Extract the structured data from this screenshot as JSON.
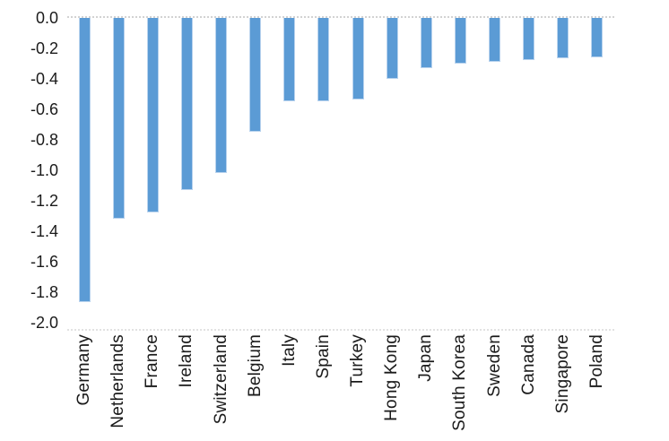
{
  "chart_data": {
    "type": "bar",
    "orientation": "vertical",
    "title": "",
    "xlabel": "",
    "ylabel": "",
    "categories": [
      "Germany",
      "Netherlands",
      "France",
      "Ireland",
      "Switzerland",
      "Belgium",
      "Italy",
      "Spain",
      "Turkey",
      "Hong Kong",
      "Japan",
      "South Korea",
      "Sweden",
      "Canada",
      "Singapore",
      "Poland"
    ],
    "values": [
      -1.87,
      -1.32,
      -1.28,
      -1.13,
      -1.02,
      -0.75,
      -0.55,
      -0.55,
      -0.54,
      -0.4,
      -0.33,
      -0.3,
      -0.29,
      -0.28,
      -0.27,
      -0.26
    ],
    "y_ticks": [
      "0.0",
      "-0.2",
      "-0.4",
      "-0.6",
      "-0.8",
      "-1.0",
      "-1.2",
      "-1.4",
      "-1.6",
      "-1.8",
      "-2.0"
    ],
    "ylim": [
      -2.0,
      0.0
    ],
    "grid": "zero-baseline-dotted-only",
    "legend": "none",
    "x_label_rotation_deg": 90,
    "bar_color": "#5b9bd5",
    "bar_border_color": "#b9d3ee",
    "gridline_color": "#d2d2d2",
    "text_color": "#1a1a1a"
  }
}
